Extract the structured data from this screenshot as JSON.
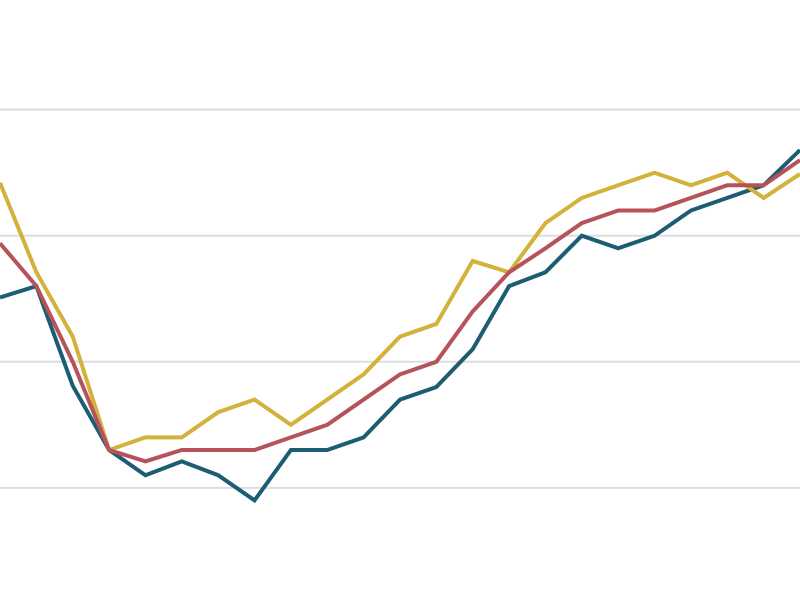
{
  "chart_data": {
    "type": "line",
    "categories": [
      null,
      null,
      null,
      null,
      null,
      null,
      null,
      null,
      null,
      null,
      null,
      null,
      null,
      null,
      null,
      null,
      null,
      null,
      null,
      null,
      null,
      null,
      null
    ],
    "series": [
      {
        "color": "#1c5d73",
        "values": [
          1.51,
          1.6,
          0.81,
          0.3,
          0.1,
          0.21,
          0.1,
          -0.1,
          0.3,
          0.3,
          0.4,
          0.7,
          0.8,
          1.1,
          1.6,
          1.71,
          2.0,
          1.9,
          2.0,
          2.2,
          2.3,
          2.4,
          2.68
        ]
      },
      {
        "color": "#d4b13a",
        "values": [
          2.42,
          1.71,
          1.2,
          0.3,
          0.4,
          0.4,
          0.6,
          0.7,
          0.5,
          0.7,
          0.9,
          1.2,
          1.3,
          1.8,
          1.71,
          2.1,
          2.3,
          2.4,
          2.5,
          2.4,
          2.5,
          2.3,
          2.49
        ]
      },
      {
        "color": "#b5525a",
        "values": [
          1.94,
          1.6,
          1.0,
          0.3,
          0.21,
          0.3,
          0.3,
          0.3,
          0.4,
          0.5,
          0.7,
          0.9,
          1.0,
          1.4,
          1.71,
          1.9,
          2.1,
          2.2,
          2.2,
          2.3,
          2.4,
          2.4,
          2.6
        ]
      }
    ],
    "ylim": [
      -0.89,
      3.87
    ],
    "yticks": [
      0,
      1,
      2,
      3
    ],
    "grid": true
  }
}
